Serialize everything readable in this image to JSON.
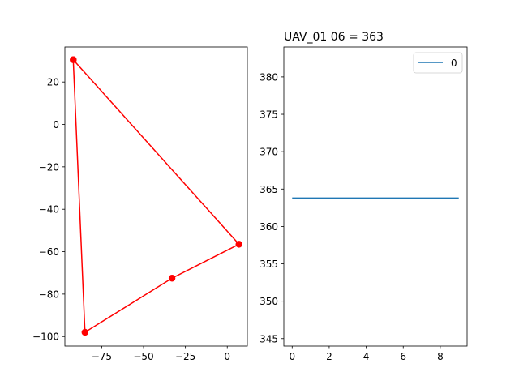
{
  "chart_data": [
    {
      "type": "line",
      "title": "",
      "xlabel": "",
      "ylabel": "",
      "xlim": [
        -97,
        12
      ],
      "ylim": [
        -104.5,
        36.5
      ],
      "xticks": [
        -75,
        -50,
        -25,
        0
      ],
      "xtick_labels": [
        "−75",
        "−50",
        "−25",
        "0"
      ],
      "yticks": [
        20,
        0,
        -20,
        -40,
        -60,
        -80,
        -100
      ],
      "ytick_labels": [
        "20",
        "0",
        "−20",
        "−40",
        "−60",
        "−80",
        "−100"
      ],
      "grid": false,
      "color": "#ff0000",
      "markers": true,
      "series": [
        {
          "x": [
            -92,
            7,
            -33,
            -85,
            -92
          ],
          "y": [
            30.5,
            -56.5,
            -72.5,
            -98,
            30.5
          ]
        }
      ]
    },
    {
      "type": "line",
      "title": "UAV_01 06 = 363",
      "xlabel": "",
      "ylabel": "",
      "xlim": [
        -0.45,
        9.45
      ],
      "ylim": [
        344,
        384
      ],
      "xticks": [
        0,
        2,
        4,
        6,
        8
      ],
      "xtick_labels": [
        "0",
        "2",
        "4",
        "6",
        "8"
      ],
      "yticks": [
        345,
        350,
        355,
        360,
        365,
        370,
        375,
        380
      ],
      "ytick_labels": [
        "345",
        "350",
        "355",
        "360",
        "365",
        "370",
        "375",
        "380"
      ],
      "grid": false,
      "legend": "top-right",
      "series": [
        {
          "name": "0",
          "color": "#1f77b4",
          "x": [
            0,
            1,
            2,
            3,
            4,
            5,
            6,
            7,
            8,
            9
          ],
          "y": [
            363.8,
            363.8,
            363.8,
            363.8,
            363.8,
            363.8,
            363.8,
            363.8,
            363.8,
            363.8
          ]
        }
      ]
    }
  ]
}
